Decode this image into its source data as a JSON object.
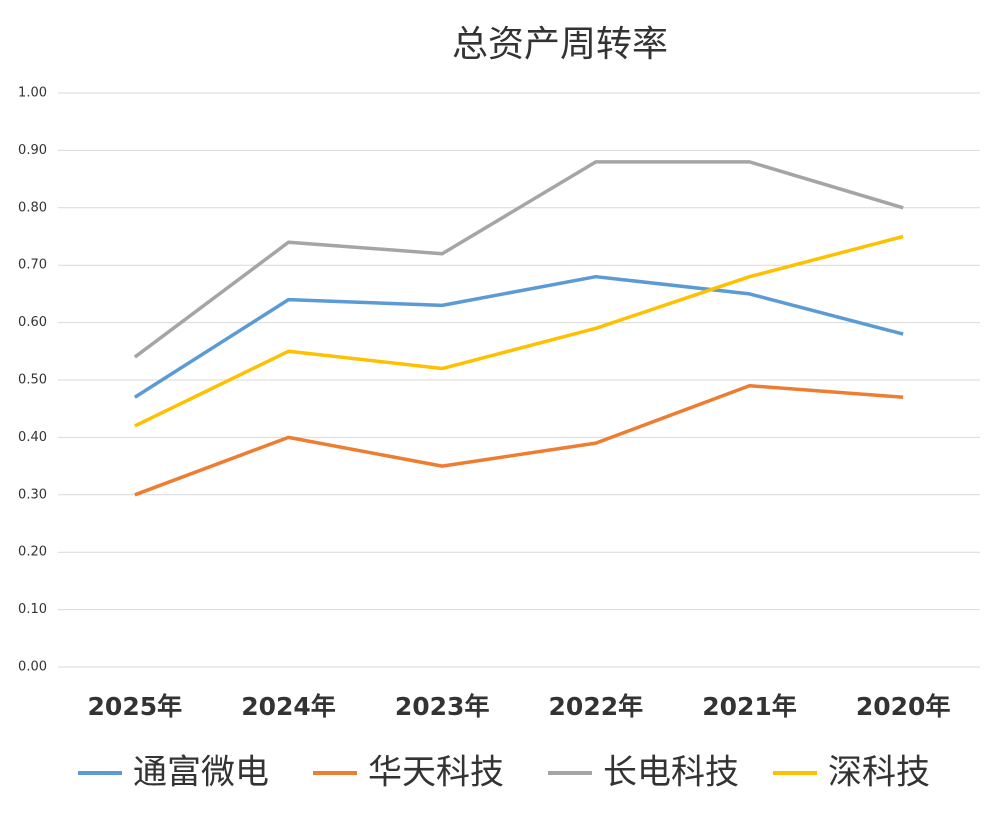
{
  "chart_data": {
    "type": "line",
    "title": "总资产周转率",
    "categories": [
      "2025年",
      "2024年",
      "2023年",
      "2022年",
      "2021年",
      "2020年"
    ],
    "series": [
      {
        "name": "通富微电",
        "color": "#5b9bd5",
        "values": [
          0.47,
          0.64,
          0.63,
          0.68,
          0.65,
          0.58
        ]
      },
      {
        "name": "华天科技",
        "color": "#ed7d31",
        "values": [
          0.3,
          0.4,
          0.35,
          0.39,
          0.49,
          0.47
        ]
      },
      {
        "name": "长电科技",
        "color": "#a5a5a5",
        "values": [
          0.54,
          0.74,
          0.72,
          0.88,
          0.88,
          0.8
        ]
      },
      {
        "name": "深科技",
        "color": "#ffc000",
        "values": [
          0.42,
          0.55,
          0.52,
          0.59,
          0.68,
          0.75
        ]
      }
    ],
    "ylim": [
      0,
      1
    ],
    "yticks": [
      {
        "value": 0,
        "label": "0.00"
      },
      {
        "value": 0.1,
        "label": "0.10"
      },
      {
        "value": 0.2,
        "label": "0.20"
      },
      {
        "value": 0.3,
        "label": "0.30"
      },
      {
        "value": 0.4,
        "label": "0.40"
      },
      {
        "value": 0.5,
        "label": "0.50"
      },
      {
        "value": 0.6,
        "label": "0.60"
      },
      {
        "value": 0.7,
        "label": "0.70"
      },
      {
        "value": 0.8,
        "label": "0.80"
      },
      {
        "value": 0.9,
        "label": "0.90"
      },
      {
        "value": 1,
        "label": "1.00"
      }
    ],
    "grid": true,
    "legend": "bottom"
  }
}
